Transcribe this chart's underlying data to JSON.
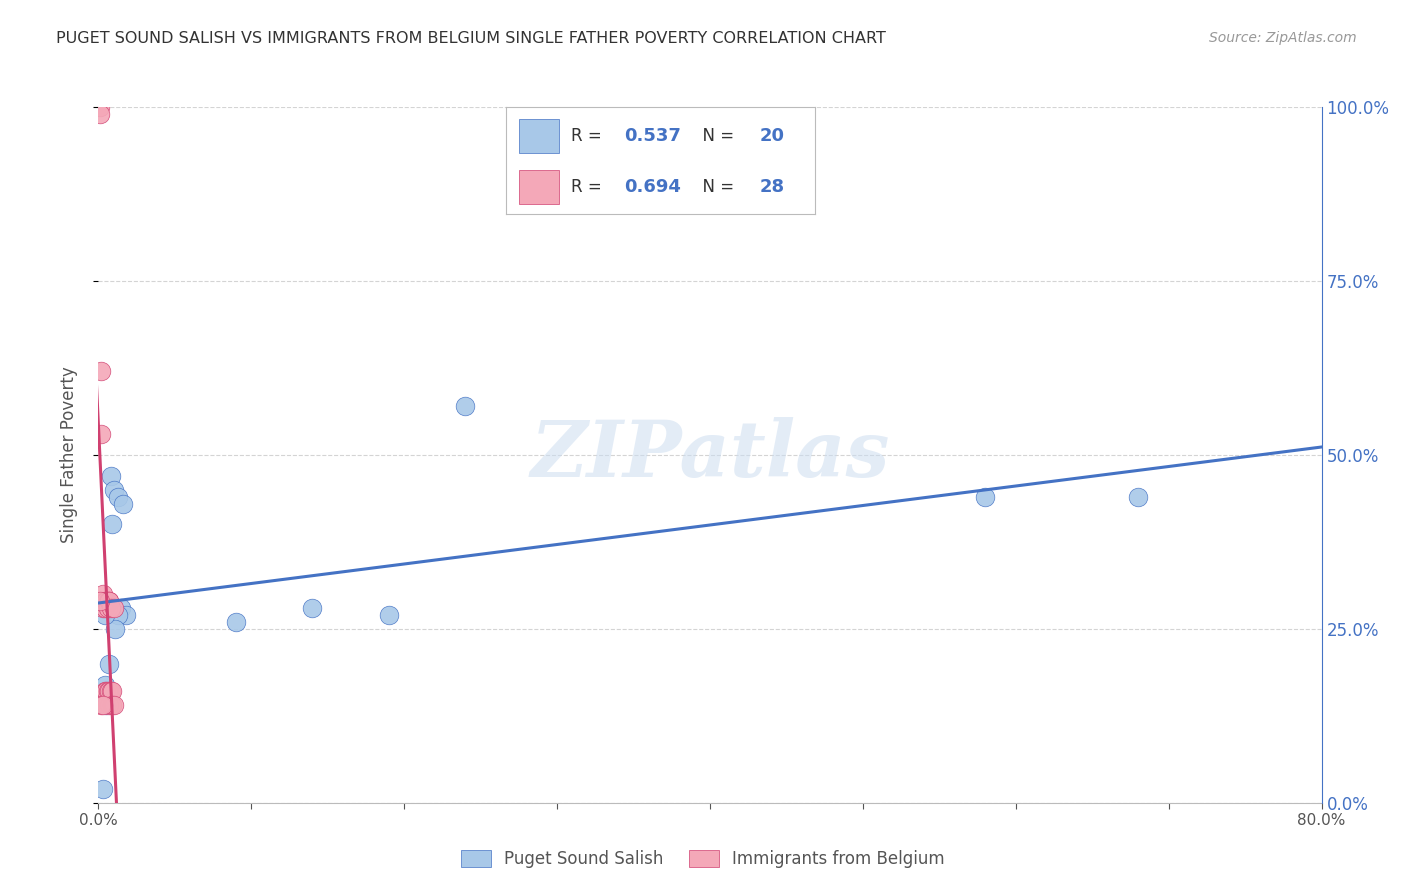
{
  "title": "PUGET SOUND SALISH VS IMMIGRANTS FROM BELGIUM SINGLE FATHER POVERTY CORRELATION CHART",
  "source": "Source: ZipAtlas.com",
  "ylabel": "Single Father Poverty",
  "xlabel_blue": "Puget Sound Salish",
  "xlabel_pink": "Immigrants from Belgium",
  "R_blue": 0.537,
  "N_blue": 20,
  "R_pink": 0.694,
  "N_pink": 28,
  "xlim": [
    0.0,
    0.8
  ],
  "ylim": [
    0.0,
    1.0
  ],
  "yticks": [
    0.0,
    0.25,
    0.5,
    0.75,
    1.0
  ],
  "color_blue": "#a8c8e8",
  "color_pink": "#f4a8b8",
  "line_color_blue": "#4472c4",
  "line_color_pink": "#d04070",
  "watermark": "ZIPatlas",
  "blue_scatter_x": [
    0.008,
    0.01,
    0.013,
    0.016,
    0.009,
    0.015,
    0.018,
    0.013,
    0.011,
    0.007,
    0.004,
    0.19,
    0.14,
    0.09,
    0.24,
    0.58,
    0.68,
    0.003,
    0.005,
    0.004
  ],
  "blue_scatter_y": [
    0.47,
    0.45,
    0.44,
    0.43,
    0.4,
    0.28,
    0.27,
    0.27,
    0.25,
    0.2,
    0.17,
    0.27,
    0.28,
    0.26,
    0.57,
    0.44,
    0.44,
    0.02,
    0.14,
    0.27
  ],
  "pink_scatter_x": [
    0.001,
    0.001,
    0.002,
    0.002,
    0.003,
    0.003,
    0.004,
    0.004,
    0.004,
    0.005,
    0.005,
    0.005,
    0.006,
    0.006,
    0.006,
    0.007,
    0.007,
    0.007,
    0.007,
    0.008,
    0.008,
    0.009,
    0.009,
    0.01,
    0.01,
    0.001,
    0.002,
    0.003
  ],
  "pink_scatter_y": [
    1.0,
    0.99,
    0.62,
    0.53,
    0.3,
    0.28,
    0.29,
    0.16,
    0.28,
    0.29,
    0.16,
    0.29,
    0.29,
    0.28,
    0.16,
    0.29,
    0.16,
    0.14,
    0.29,
    0.28,
    0.16,
    0.16,
    0.14,
    0.14,
    0.28,
    0.29,
    0.14,
    0.14
  ],
  "background_color": "#ffffff",
  "grid_color": "#d0d0d0",
  "title_color": "#333333",
  "axis_label_color": "#555555",
  "right_axis_color": "#4472c4"
}
